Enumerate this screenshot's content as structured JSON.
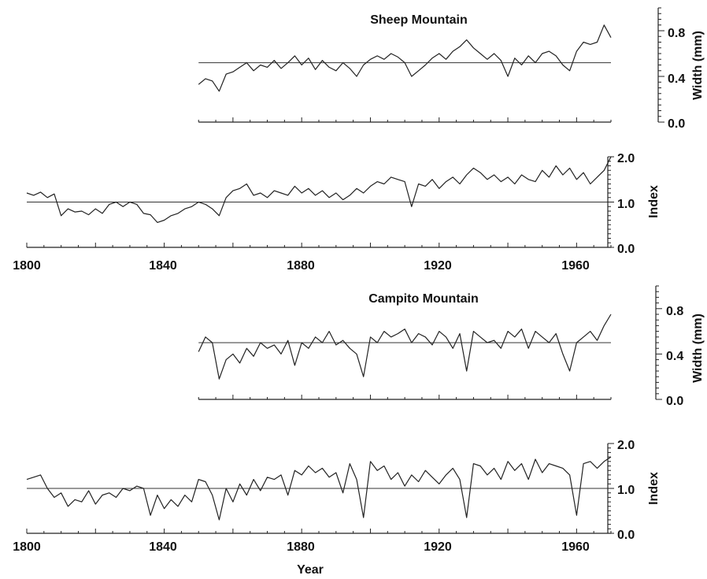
{
  "chart_data": [
    {
      "id": "sheep-width",
      "type": "line",
      "title": "Sheep Mountain",
      "ylabel": "Width (mm)",
      "xlim": [
        1800,
        1970
      ],
      "ylim": [
        0,
        1.0
      ],
      "yticks": [
        0.0,
        0.4,
        0.8
      ],
      "ytick_labels": [
        "0.0",
        "0.4",
        "0.8"
      ],
      "reference_line": 0.52,
      "x_start": 1850,
      "x": [
        1850,
        1852,
        1854,
        1856,
        1858,
        1860,
        1862,
        1864,
        1866,
        1868,
        1870,
        1872,
        1874,
        1876,
        1878,
        1880,
        1882,
        1884,
        1886,
        1888,
        1890,
        1892,
        1894,
        1896,
        1898,
        1900,
        1902,
        1904,
        1906,
        1908,
        1910,
        1912,
        1914,
        1916,
        1918,
        1920,
        1922,
        1924,
        1926,
        1928,
        1930,
        1932,
        1934,
        1936,
        1938,
        1940,
        1942,
        1944,
        1946,
        1948,
        1950,
        1952,
        1954,
        1956,
        1958,
        1960,
        1962,
        1964,
        1966,
        1968,
        1970
      ],
      "values": [
        0.33,
        0.38,
        0.36,
        0.27,
        0.42,
        0.44,
        0.48,
        0.52,
        0.45,
        0.5,
        0.48,
        0.54,
        0.47,
        0.52,
        0.58,
        0.5,
        0.56,
        0.46,
        0.54,
        0.48,
        0.45,
        0.52,
        0.47,
        0.4,
        0.5,
        0.55,
        0.58,
        0.55,
        0.6,
        0.57,
        0.52,
        0.4,
        0.45,
        0.5,
        0.56,
        0.6,
        0.55,
        0.62,
        0.66,
        0.72,
        0.65,
        0.6,
        0.55,
        0.6,
        0.54,
        0.4,
        0.56,
        0.5,
        0.58,
        0.52,
        0.6,
        0.62,
        0.58,
        0.5,
        0.45,
        0.62,
        0.7,
        0.68,
        0.7,
        0.85,
        0.74
      ]
    },
    {
      "id": "sheep-index",
      "type": "line",
      "ylabel": "Index",
      "xlim": [
        1800,
        1970
      ],
      "ylim": [
        0,
        2.0
      ],
      "yticks": [
        0.0,
        1.0,
        2.0
      ],
      "ytick_labels": [
        "0.0",
        "1.0",
        "2.0"
      ],
      "reference_line": 1.0,
      "x": [
        1800,
        1802,
        1804,
        1806,
        1808,
        1810,
        1812,
        1814,
        1816,
        1818,
        1820,
        1822,
        1824,
        1826,
        1828,
        1830,
        1832,
        1834,
        1836,
        1838,
        1840,
        1842,
        1844,
        1846,
        1848,
        1850,
        1852,
        1854,
        1856,
        1858,
        1860,
        1862,
        1864,
        1866,
        1868,
        1870,
        1872,
        1874,
        1876,
        1878,
        1880,
        1882,
        1884,
        1886,
        1888,
        1890,
        1892,
        1894,
        1896,
        1898,
        1900,
        1902,
        1904,
        1906,
        1908,
        1910,
        1912,
        1914,
        1916,
        1918,
        1920,
        1922,
        1924,
        1926,
        1928,
        1930,
        1932,
        1934,
        1936,
        1938,
        1940,
        1942,
        1944,
        1946,
        1948,
        1950,
        1952,
        1954,
        1956,
        1958,
        1960,
        1962,
        1964,
        1966,
        1968,
        1970
      ],
      "values": [
        1.2,
        1.15,
        1.22,
        1.1,
        1.18,
        0.7,
        0.85,
        0.78,
        0.8,
        0.72,
        0.85,
        0.75,
        0.95,
        1.0,
        0.9,
        1.0,
        0.95,
        0.75,
        0.72,
        0.55,
        0.6,
        0.7,
        0.75,
        0.85,
        0.9,
        1.0,
        0.95,
        0.85,
        0.7,
        1.1,
        1.25,
        1.3,
        1.4,
        1.15,
        1.2,
        1.1,
        1.25,
        1.2,
        1.15,
        1.35,
        1.2,
        1.3,
        1.15,
        1.25,
        1.1,
        1.2,
        1.05,
        1.15,
        1.3,
        1.2,
        1.35,
        1.45,
        1.4,
        1.55,
        1.5,
        1.45,
        0.9,
        1.4,
        1.35,
        1.5,
        1.3,
        1.45,
        1.55,
        1.4,
        1.6,
        1.75,
        1.65,
        1.5,
        1.6,
        1.45,
        1.55,
        1.4,
        1.6,
        1.5,
        1.45,
        1.7,
        1.55,
        1.8,
        1.6,
        1.75,
        1.5,
        1.65,
        1.4,
        1.55,
        1.7,
        2.0
      ]
    },
    {
      "id": "campito-width",
      "type": "line",
      "title": "Campito Mountain",
      "ylabel": "Width (mm)",
      "xlim": [
        1800,
        1970
      ],
      "ylim": [
        0,
        1.0
      ],
      "yticks": [
        0.0,
        0.4,
        0.8
      ],
      "ytick_labels": [
        "0.0",
        "0.4",
        "0.8"
      ],
      "reference_line": 0.5,
      "x_start": 1850,
      "x": [
        1850,
        1852,
        1854,
        1856,
        1858,
        1860,
        1862,
        1864,
        1866,
        1868,
        1870,
        1872,
        1874,
        1876,
        1878,
        1880,
        1882,
        1884,
        1886,
        1888,
        1890,
        1892,
        1894,
        1896,
        1898,
        1900,
        1902,
        1904,
        1906,
        1908,
        1910,
        1912,
        1914,
        1916,
        1918,
        1920,
        1922,
        1924,
        1926,
        1928,
        1930,
        1932,
        1934,
        1936,
        1938,
        1940,
        1942,
        1944,
        1946,
        1948,
        1950,
        1952,
        1954,
        1956,
        1958,
        1960,
        1962,
        1964,
        1966,
        1968,
        1970
      ],
      "values": [
        0.42,
        0.55,
        0.5,
        0.18,
        0.35,
        0.4,
        0.32,
        0.45,
        0.38,
        0.5,
        0.45,
        0.48,
        0.4,
        0.52,
        0.3,
        0.5,
        0.45,
        0.55,
        0.5,
        0.6,
        0.48,
        0.52,
        0.45,
        0.4,
        0.2,
        0.55,
        0.5,
        0.6,
        0.55,
        0.58,
        0.62,
        0.5,
        0.58,
        0.55,
        0.48,
        0.6,
        0.55,
        0.45,
        0.58,
        0.25,
        0.6,
        0.55,
        0.5,
        0.52,
        0.45,
        0.6,
        0.55,
        0.62,
        0.45,
        0.6,
        0.55,
        0.5,
        0.58,
        0.4,
        0.25,
        0.5,
        0.55,
        0.6,
        0.52,
        0.65,
        0.75
      ]
    },
    {
      "id": "campito-index",
      "type": "line",
      "ylabel": "Index",
      "xlabel": "Year",
      "xlim": [
        1800,
        1970
      ],
      "ylim": [
        0,
        2.0
      ],
      "yticks": [
        0.0,
        1.0,
        2.0
      ],
      "ytick_labels": [
        "0.0",
        "1.0",
        "2.0"
      ],
      "xticks": [
        1800,
        1840,
        1880,
        1920,
        1960
      ],
      "xtick_labels": [
        "1800",
        "1840",
        "1880",
        "1920",
        "1960"
      ],
      "reference_line": 1.0,
      "x": [
        1800,
        1802,
        1804,
        1806,
        1808,
        1810,
        1812,
        1814,
        1816,
        1818,
        1820,
        1822,
        1824,
        1826,
        1828,
        1830,
        1832,
        1834,
        1836,
        1838,
        1840,
        1842,
        1844,
        1846,
        1848,
        1850,
        1852,
        1854,
        1856,
        1858,
        1860,
        1862,
        1864,
        1866,
        1868,
        1870,
        1872,
        1874,
        1876,
        1878,
        1880,
        1882,
        1884,
        1886,
        1888,
        1890,
        1892,
        1894,
        1896,
        1898,
        1900,
        1902,
        1904,
        1906,
        1908,
        1910,
        1912,
        1914,
        1916,
        1918,
        1920,
        1922,
        1924,
        1926,
        1928,
        1930,
        1932,
        1934,
        1936,
        1938,
        1940,
        1942,
        1944,
        1946,
        1948,
        1950,
        1952,
        1954,
        1956,
        1958,
        1960,
        1962,
        1964,
        1966,
        1968,
        1970
      ],
      "values": [
        1.2,
        1.25,
        1.3,
        1.0,
        0.8,
        0.9,
        0.6,
        0.75,
        0.7,
        0.95,
        0.65,
        0.85,
        0.9,
        0.8,
        1.0,
        0.95,
        1.05,
        1.0,
        0.4,
        0.85,
        0.55,
        0.75,
        0.6,
        0.85,
        0.7,
        1.2,
        1.15,
        0.85,
        0.3,
        1.0,
        0.7,
        1.1,
        0.85,
        1.2,
        0.95,
        1.25,
        1.2,
        1.3,
        0.85,
        1.4,
        1.3,
        1.5,
        1.35,
        1.45,
        1.25,
        1.35,
        0.9,
        1.55,
        1.2,
        0.35,
        1.6,
        1.4,
        1.5,
        1.2,
        1.35,
        1.05,
        1.3,
        1.15,
        1.4,
        1.25,
        1.1,
        1.3,
        1.45,
        1.2,
        0.35,
        1.55,
        1.5,
        1.3,
        1.45,
        1.2,
        1.6,
        1.4,
        1.55,
        1.2,
        1.65,
        1.35,
        1.55,
        1.5,
        1.45,
        1.3,
        0.4,
        1.55,
        1.6,
        1.45,
        1.6,
        1.7
      ]
    }
  ]
}
